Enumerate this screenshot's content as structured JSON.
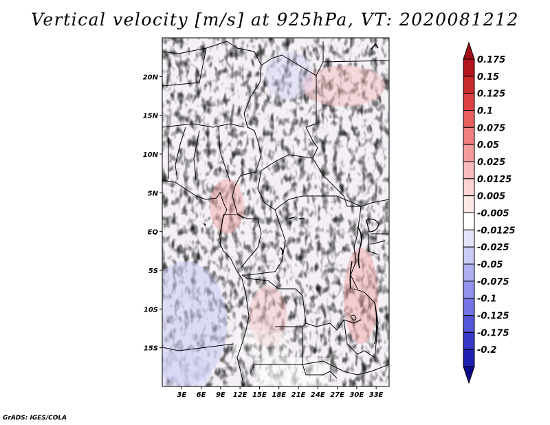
{
  "title": "Vertical velocity [m/s] at 925hPa, VT: 2020081212",
  "credit": "GrADS: IGES/COLA",
  "map": {
    "lon_range": [
      0,
      35
    ],
    "lat_range": [
      -20,
      25
    ],
    "lon_ticks": [
      {
        "value": 3,
        "label": "3E"
      },
      {
        "value": 6,
        "label": "6E"
      },
      {
        "value": 9,
        "label": "9E"
      },
      {
        "value": 12,
        "label": "12E"
      },
      {
        "value": 15,
        "label": "15E"
      },
      {
        "value": 18,
        "label": "18E"
      },
      {
        "value": 21,
        "label": "21E"
      },
      {
        "value": 24,
        "label": "24E"
      },
      {
        "value": 27,
        "label": "27E"
      },
      {
        "value": 30,
        "label": "30E"
      },
      {
        "value": 33,
        "label": "33E"
      }
    ],
    "lat_ticks": [
      {
        "value": 20,
        "label": "20N"
      },
      {
        "value": 15,
        "label": "15N"
      },
      {
        "value": 10,
        "label": "10N"
      },
      {
        "value": 5,
        "label": "5N"
      },
      {
        "value": 0,
        "label": "EQ"
      },
      {
        "value": -5,
        "label": "5S"
      },
      {
        "value": -10,
        "label": "10S"
      },
      {
        "value": -15,
        "label": "15S"
      }
    ]
  },
  "colorbar": {
    "levels": [
      {
        "label": "0.175",
        "color": "#b4151c"
      },
      {
        "label": "0.15",
        "color": "#c92a2a"
      },
      {
        "label": "0.125",
        "color": "#dd4242"
      },
      {
        "label": "0.1",
        "color": "#e85f5f"
      },
      {
        "label": "0.075",
        "color": "#ef7f7f"
      },
      {
        "label": "0.05",
        "color": "#f49c9c"
      },
      {
        "label": "0.025",
        "color": "#f8baba"
      },
      {
        "label": "0.0125",
        "color": "#fbd3d3"
      },
      {
        "label": "0.005",
        "color": "#fde8e8"
      },
      {
        "label": "-0.005",
        "color": "#ffffff"
      },
      {
        "label": "-0.0125",
        "color": "#e4e4fb"
      },
      {
        "label": "-0.025",
        "color": "#cacaf6"
      },
      {
        "label": "-0.05",
        "color": "#aeaef1"
      },
      {
        "label": "-0.075",
        "color": "#9292ec"
      },
      {
        "label": "-0.1",
        "color": "#7373e3"
      },
      {
        "label": "-0.125",
        "color": "#5555d8"
      },
      {
        "label": "-0.175",
        "color": "#3737c8"
      },
      {
        "label": "-0.2",
        "color": "#1e1eb0"
      },
      {
        "label": "",
        "color": "#0b0b8a"
      }
    ],
    "top_color": "#a01016"
  }
}
